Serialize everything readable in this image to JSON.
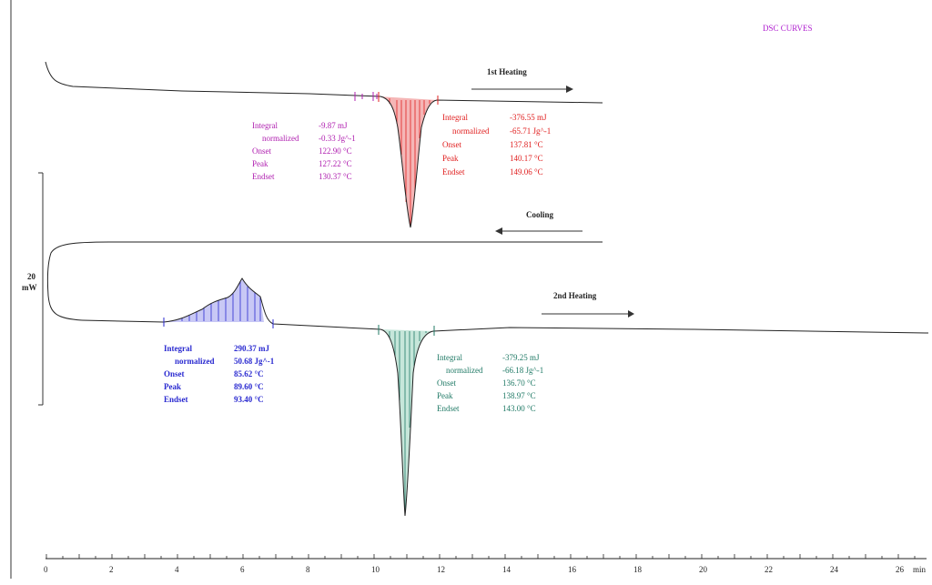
{
  "header": {
    "title": "DSC CURVES"
  },
  "colors": {
    "curve": "#222222",
    "first_heat_small_peak": "#b020b0",
    "first_heat_main_peak": "#e02020",
    "crystallization_peak": "#2a2ad0",
    "second_heat_peak": "#207a66",
    "title": "#b020d0"
  },
  "scale_bar": {
    "label_value": "20",
    "label_unit": "mW"
  },
  "chart_data": {
    "type": "line",
    "title": "DSC CURVES",
    "xlabel": "min",
    "xlim": [
      0,
      26.5
    ],
    "xticks": [
      0,
      2,
      4,
      6,
      8,
      10,
      12,
      14,
      16,
      18,
      20,
      22,
      24,
      26
    ],
    "xtick_labels": [
      "0",
      "2",
      "4",
      "6",
      "8",
      "10",
      "12",
      "14",
      "16",
      "18",
      "20",
      "22",
      "24",
      "26"
    ],
    "x_unit_label": "min",
    "scale_bar_mW": 20,
    "series": [
      {
        "name": "1st Heating",
        "direction": "right",
        "x_range": [
          0,
          17.2
        ],
        "event": "small endotherm at ~9.5–10 min, main endotherm (melting) peak near 11.1 min"
      },
      {
        "name": "Cooling",
        "direction": "left",
        "x_range": [
          0,
          17.2
        ],
        "event": "flat baseline"
      },
      {
        "name": "2nd Heating",
        "direction": "right",
        "x_range": [
          0,
          26.5
        ],
        "event": "exotherm region 3.5–6.8 min, endotherm peak near 11 min"
      }
    ],
    "annotations": {
      "first_heat_small": {
        "rows": [
          {
            "label": "Integral",
            "value": "-9.87 mJ"
          },
          {
            "label": "normalized",
            "value": "-0.33 Jg^-1"
          },
          {
            "label": "Onset",
            "value": "122.90 °C"
          },
          {
            "label": "Peak",
            "value": "127.22 °C"
          },
          {
            "label": "Endset",
            "value": "130.37 °C"
          }
        ]
      },
      "first_heat_main": {
        "rows": [
          {
            "label": "Integral",
            "value": "-376.55 mJ"
          },
          {
            "label": "normalized",
            "value": "-65.71 Jg^-1"
          },
          {
            "label": "Onset",
            "value": "137.81 °C"
          },
          {
            "label": "Peak",
            "value": "140.17 °C"
          },
          {
            "label": "Endset",
            "value": "149.06 °C"
          }
        ]
      },
      "crystallization": {
        "rows": [
          {
            "label": "Integral",
            "value": "290.37 mJ"
          },
          {
            "label": "normalized",
            "value": "50.68 Jg^-1"
          },
          {
            "label": "Onset",
            "value": "85.62 °C"
          },
          {
            "label": "Peak",
            "value": "89.60 °C"
          },
          {
            "label": "Endset",
            "value": "93.40 °C"
          }
        ]
      },
      "second_heat": {
        "rows": [
          {
            "label": "Integral",
            "value": "-379.25 mJ"
          },
          {
            "label": "normalized",
            "value": "-66.18 Jg^-1"
          },
          {
            "label": "Onset",
            "value": "136.70 °C"
          },
          {
            "label": "Peak",
            "value": "138.97 °C"
          },
          {
            "label": "Endset",
            "value": "143.00 °C"
          }
        ]
      }
    }
  }
}
